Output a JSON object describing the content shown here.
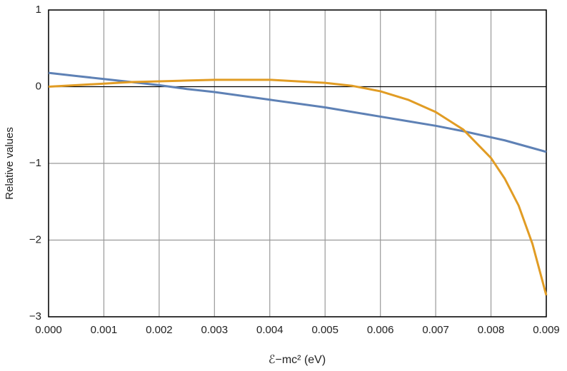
{
  "chart_data": {
    "type": "line",
    "xlabel": "ℰ−mc² (eV)",
    "ylabel": "Relative values",
    "x": [
      0,
      0.0005,
      0.001,
      0.0015,
      0.002,
      0.0025,
      0.003,
      0.0035,
      0.004,
      0.0045,
      0.005,
      0.0055,
      0.006,
      0.0065,
      0.007,
      0.0075,
      0.008,
      0.00825,
      0.0085,
      0.00875,
      0.009
    ],
    "series": [
      {
        "color": "#5e81b5",
        "values": [
          0.18,
          0.14,
          0.1,
          0.06,
          0.02,
          -0.03,
          -0.07,
          -0.12,
          -0.17,
          -0.22,
          -0.27,
          -0.33,
          -0.39,
          -0.45,
          -0.51,
          -0.58,
          -0.66,
          -0.7,
          -0.75,
          -0.8,
          -0.85
        ]
      },
      {
        "color": "#e19c24",
        "values": [
          0,
          0.02,
          0.04,
          0.06,
          0.07,
          0.08,
          0.09,
          0.09,
          0.09,
          0.07,
          0.05,
          0.01,
          -0.06,
          -0.17,
          -0.33,
          -0.56,
          -0.93,
          -1.2,
          -1.55,
          -2.05,
          -2.72
        ]
      }
    ],
    "xlim": [
      0,
      0.009
    ],
    "xticks": [
      {
        "value": 0,
        "label": "0.000"
      },
      0.001,
      0.002,
      0.003,
      0.004,
      0.005,
      0.006,
      0.007,
      0.008,
      0.009
    ],
    "ylim": [
      -3,
      1
    ],
    "yticks": [
      {
        "value": -3,
        "label": "−3"
      },
      {
        "value": -2,
        "label": "−2"
      },
      {
        "value": -1,
        "label": "−1"
      },
      0,
      1
    ],
    "grid": true
  }
}
